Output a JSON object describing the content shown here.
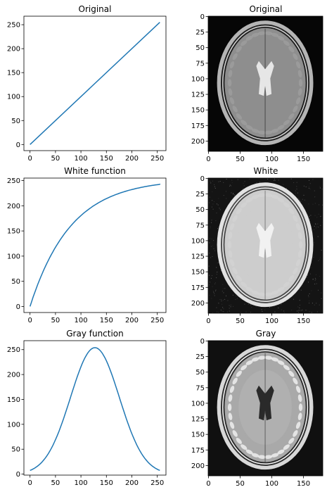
{
  "figure": {
    "line_color": "#1f77b4",
    "subplots_note": "3x2 grid: left column transfer functions, right column MRI images"
  },
  "chart_data": [
    {
      "type": "line",
      "title": "Original",
      "function": "identity",
      "x": [
        0,
        255
      ],
      "y": [
        0,
        255
      ],
      "xlim": [
        -12,
        267
      ],
      "ylim": [
        -12.75,
        267.75
      ],
      "xticks": [
        "0",
        "50",
        "100",
        "150",
        "200",
        "250"
      ],
      "yticks": [
        "0",
        "50",
        "100",
        "150",
        "200",
        "250"
      ],
      "xlabel": "",
      "ylabel": "",
      "grid": false
    },
    {
      "type": "image",
      "title": "Original",
      "colormap": "gray",
      "variant": "original",
      "width": 181,
      "height": 217,
      "xticks": [
        "0",
        "50",
        "100",
        "150"
      ],
      "yticks": [
        "0",
        "25",
        "50",
        "75",
        "100",
        "125",
        "150",
        "175",
        "200"
      ]
    },
    {
      "type": "line",
      "title": "White function",
      "function": "saturating-exponential",
      "x": [
        0,
        10,
        20,
        30,
        40,
        50,
        60,
        70,
        80,
        90,
        100,
        110,
        120,
        130,
        140,
        150,
        160,
        170,
        180,
        190,
        200,
        210,
        220,
        230,
        240,
        250,
        255
      ],
      "y": [
        0,
        23,
        44,
        62,
        79,
        94,
        108,
        120,
        132,
        142,
        152,
        160,
        168,
        175,
        182,
        188,
        194,
        199,
        204,
        208,
        212,
        216,
        219,
        222,
        225,
        228,
        242
      ],
      "xlim": [
        -12,
        267
      ],
      "ylim": [
        -12,
        255
      ],
      "xticks": [
        "0",
        "50",
        "100",
        "150",
        "200",
        "250"
      ],
      "yticks": [
        "0",
        "50",
        "100",
        "150",
        "200",
        "250"
      ],
      "xlabel": "",
      "ylabel": "",
      "grid": false
    },
    {
      "type": "image",
      "title": "White",
      "colormap": "gray",
      "variant": "white",
      "width": 181,
      "height": 217,
      "xticks": [
        "0",
        "50",
        "100",
        "150"
      ],
      "yticks": [
        "0",
        "25",
        "50",
        "75",
        "100",
        "125",
        "150",
        "175",
        "200"
      ]
    },
    {
      "type": "line",
      "title": "Gray function",
      "function": "gaussian",
      "x": [
        0,
        10,
        20,
        30,
        40,
        50,
        60,
        70,
        80,
        90,
        100,
        110,
        120,
        127,
        135,
        145,
        155,
        165,
        175,
        185,
        195,
        205,
        215,
        225,
        235,
        245,
        255
      ],
      "y": [
        10,
        15,
        22,
        31,
        44,
        60,
        80,
        103,
        130,
        162,
        198,
        232,
        250,
        254,
        250,
        235,
        205,
        170,
        137,
        108,
        82,
        60,
        42,
        29,
        19,
        13,
        10
      ],
      "xlim": [
        -12,
        267
      ],
      "ylim": [
        -2,
        268
      ],
      "xticks": [
        "0",
        "50",
        "100",
        "150",
        "200",
        "250"
      ],
      "yticks": [
        "0",
        "50",
        "100",
        "150",
        "200",
        "250"
      ],
      "xlabel": "",
      "ylabel": "",
      "grid": false
    },
    {
      "type": "image",
      "title": "Gray",
      "colormap": "gray",
      "variant": "gray",
      "width": 181,
      "height": 217,
      "xticks": [
        "0",
        "50",
        "100",
        "150"
      ],
      "yticks": [
        "0",
        "25",
        "50",
        "75",
        "100",
        "125",
        "150",
        "175",
        "200"
      ]
    }
  ]
}
